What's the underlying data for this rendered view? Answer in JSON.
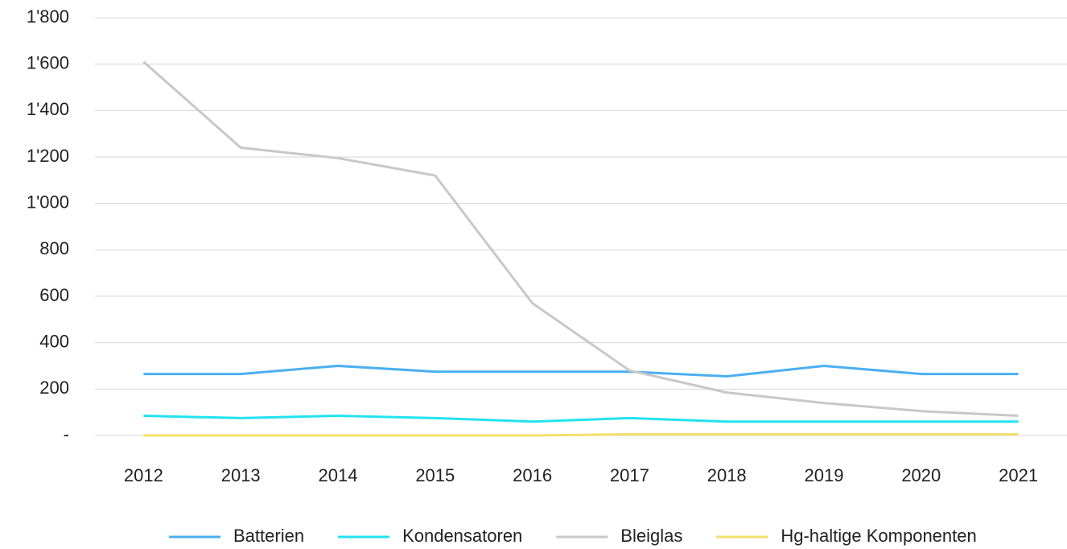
{
  "chart_data": {
    "type": "line",
    "categories": [
      "2012",
      "2013",
      "2014",
      "2015",
      "2016",
      "2017",
      "2018",
      "2019",
      "2020",
      "2021"
    ],
    "series": [
      {
        "name": "Batterien",
        "color": "#4aaff0",
        "values": [
          265,
          265,
          300,
          275,
          275,
          275,
          255,
          300,
          265,
          265
        ]
      },
      {
        "name": "Kondensatoren",
        "color": "#22e3ef",
        "values": [
          85,
          75,
          85,
          75,
          60,
          75,
          60,
          60,
          60,
          60
        ]
      },
      {
        "name": "Bleiglas",
        "color": "#c8c8c8",
        "values": [
          1610,
          1240,
          1195,
          1120,
          570,
          280,
          185,
          140,
          105,
          85
        ]
      },
      {
        "name": "Hg-haltige Komponenten",
        "color": "#f3df6a",
        "values": [
          0,
          0,
          0,
          0,
          0,
          5,
          5,
          5,
          5,
          5
        ]
      }
    ],
    "ylim": [
      0,
      1800
    ],
    "yticks": [
      {
        "value": 0,
        "label": "-"
      },
      200,
      400,
      600,
      800,
      {
        "value": 1000,
        "label": "1'000"
      },
      {
        "value": 1200,
        "label": "1'200"
      },
      {
        "value": 1400,
        "label": "1'400"
      },
      {
        "value": 1600,
        "label": "1'600"
      },
      {
        "value": 1800,
        "label": "1'800"
      }
    ],
    "grid": true,
    "legend": "bottom"
  }
}
